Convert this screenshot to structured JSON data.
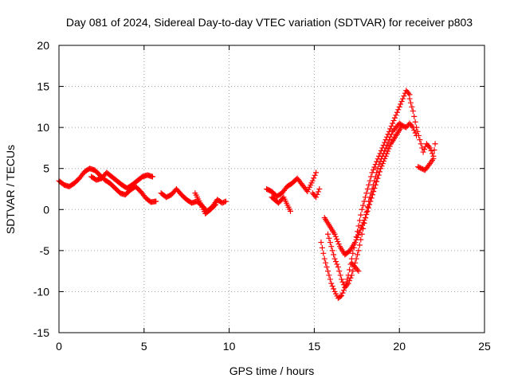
{
  "chart_data": {
    "type": "scatter",
    "title": "Day 081 of 2024, Sidereal Day-to-day VTEC variation (SDTVAR) for receiver p803",
    "xlabel": "GPS time / hours",
    "ylabel": "SDTVAR / TECUs",
    "xlim": [
      0,
      25
    ],
    "ylim": [
      -15,
      20
    ],
    "xticks": [
      0,
      5,
      10,
      15,
      20,
      25
    ],
    "yticks": [
      -15,
      -10,
      -5,
      0,
      5,
      10,
      15,
      20
    ],
    "xtick_labels": [
      "0",
      "5",
      "10",
      "15",
      "20",
      "25"
    ],
    "ytick_labels": [
      "-15",
      "-10",
      "-5",
      "0",
      "5",
      "10",
      "15",
      "20"
    ],
    "grid": true,
    "marker": "+",
    "color": "#ff0000",
    "series": [
      {
        "name": "SDTVAR",
        "segments": [
          {
            "x": [
              0.0,
              0.3,
              0.6,
              0.9,
              1.2,
              1.5,
              1.8,
              2.1,
              2.4,
              2.7,
              3.0,
              3.3,
              3.6,
              3.9,
              4.2,
              4.5,
              4.8,
              5.1,
              5.4,
              5.7
            ],
            "y": [
              3.5,
              3.0,
              2.8,
              3.2,
              3.8,
              4.6,
              5.0,
              4.8,
              4.2,
              3.6,
              3.2,
              2.6,
              2.0,
              1.8,
              2.4,
              2.8,
              2.2,
              1.4,
              0.9,
              1.0
            ]
          },
          {
            "x": [
              1.9,
              2.2,
              2.5,
              2.8,
              3.1,
              3.4,
              3.7,
              4.0,
              4.3,
              4.6,
              4.9,
              5.2,
              5.5
            ],
            "y": [
              4.0,
              3.6,
              3.8,
              4.5,
              4.0,
              3.5,
              3.0,
              2.6,
              3.0,
              3.5,
              4.0,
              4.2,
              4.0
            ]
          },
          {
            "x": [
              6.0,
              6.3,
              6.6,
              6.9,
              7.2,
              7.5,
              7.8,
              8.1,
              8.4,
              8.7,
              9.0,
              9.3,
              9.6,
              9.8
            ],
            "y": [
              2.0,
              1.5,
              1.8,
              2.5,
              1.8,
              1.2,
              0.8,
              1.0,
              0.5,
              -0.2,
              0.3,
              1.2,
              0.8,
              1.0
            ]
          },
          {
            "x": [
              8.0,
              8.3,
              8.6,
              8.9,
              9.2
            ],
            "y": [
              2.0,
              0.8,
              -0.5,
              0.0,
              0.6
            ]
          },
          {
            "x": [
              12.2,
              12.5,
              12.8,
              13.1,
              13.4,
              13.7,
              14.0,
              14.3,
              14.6,
              14.9,
              15.1
            ],
            "y": [
              2.5,
              2.2,
              1.6,
              2.0,
              2.8,
              3.2,
              3.8,
              3.0,
              2.2,
              3.5,
              4.5
            ]
          },
          {
            "x": [
              12.5,
              12.9,
              13.2,
              13.6
            ],
            "y": [
              1.5,
              0.8,
              1.5,
              -0.2
            ]
          },
          {
            "x": [
              14.9,
              15.1,
              15.3
            ],
            "y": [
              2.0,
              1.5,
              2.5
            ]
          },
          {
            "x": [
              15.4,
              15.6,
              15.8,
              16.0,
              16.2,
              16.4,
              16.6,
              16.8,
              17.0,
              17.2,
              17.4,
              17.6,
              17.8,
              18.0,
              18.2,
              18.4,
              18.6,
              18.8,
              19.0,
              19.2,
              19.4,
              19.6,
              19.8,
              20.0,
              20.2,
              20.4,
              20.6
            ],
            "y": [
              -4.0,
              -6.0,
              -7.5,
              -9.0,
              -10.0,
              -10.8,
              -10.5,
              -9.5,
              -8.0,
              -6.0,
              -4.0,
              -2.0,
              0.0,
              1.5,
              3.0,
              4.5,
              5.5,
              6.5,
              7.5,
              8.5,
              9.5,
              10.5,
              11.5,
              12.5,
              13.5,
              14.5,
              14.0
            ]
          },
          {
            "x": [
              15.8,
              16.0,
              16.2,
              16.4,
              16.6,
              16.8,
              17.0,
              17.2,
              17.4,
              17.6,
              17.8,
              18.0,
              18.2,
              18.4,
              18.6,
              18.8,
              19.0,
              19.2,
              19.4,
              19.6,
              19.8,
              20.0,
              20.2,
              20.4,
              20.6,
              20.8,
              21.0
            ],
            "y": [
              -3.0,
              -4.5,
              -6.0,
              -7.0,
              -8.5,
              -9.5,
              -9.0,
              -8.0,
              -6.5,
              -5.0,
              -3.0,
              -1.0,
              1.0,
              2.5,
              4.0,
              5.5,
              6.5,
              7.5,
              8.5,
              9.5,
              10.0,
              10.5,
              10.2,
              10.0,
              10.5,
              10.0,
              9.0
            ]
          },
          {
            "x": [
              15.6,
              15.9,
              16.2,
              16.5,
              16.8,
              17.1,
              17.4,
              17.7,
              18.0,
              18.3,
              18.6,
              18.9,
              19.2,
              19.5,
              19.8,
              20.1
            ],
            "y": [
              -1.0,
              -2.0,
              -3.0,
              -4.5,
              -5.5,
              -5.0,
              -4.0,
              -2.5,
              -1.0,
              1.0,
              3.0,
              5.0,
              6.5,
              8.0,
              9.0,
              10.0
            ]
          },
          {
            "x": [
              17.2,
              17.4,
              17.6
            ],
            "y": [
              -6.5,
              -7.0,
              -7.5
            ]
          },
          {
            "x": [
              20.6,
              20.8,
              21.0,
              21.2,
              21.4,
              21.6,
              21.8,
              22.0,
              22.1
            ],
            "y": [
              13.5,
              12.0,
              10.0,
              8.5,
              7.0,
              8.0,
              7.5,
              6.5,
              8.0
            ]
          },
          {
            "x": [
              21.1,
              21.3,
              21.5,
              21.8,
              22.0
            ],
            "y": [
              5.2,
              5.0,
              4.8,
              5.6,
              6.2
            ]
          }
        ]
      }
    ]
  }
}
